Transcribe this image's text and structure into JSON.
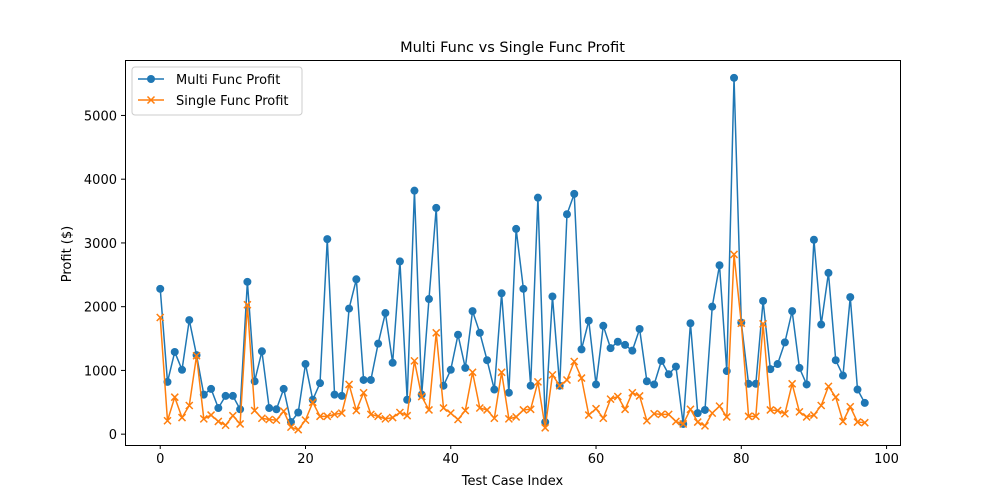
{
  "chart_data": {
    "type": "line",
    "title": "Multi Func vs Single Func Profit",
    "xlabel": "Test Case Index",
    "ylabel": "Profit ($)",
    "xlim": [
      -4.85,
      101.85
    ],
    "ylim": [
      -170,
      5870
    ],
    "xticks": [
      0,
      20,
      40,
      60,
      80,
      100
    ],
    "yticks": [
      0,
      1000,
      2000,
      3000,
      4000,
      5000
    ],
    "grid": false,
    "legend_position": "top-left",
    "series": [
      {
        "name": "Multi Func Profit",
        "color": "#1f77b4",
        "marker": "circle",
        "values": [
          2280,
          820,
          1290,
          1010,
          1790,
          1240,
          620,
          710,
          410,
          600,
          600,
          390,
          2390,
          830,
          1300,
          410,
          390,
          710,
          190,
          340,
          1100,
          540,
          800,
          3060,
          620,
          600,
          1970,
          2430,
          850,
          850,
          1420,
          1900,
          1120,
          2710,
          540,
          3820,
          620,
          2120,
          3550,
          760,
          1010,
          1560,
          1040,
          1930,
          1590,
          1160,
          700,
          2210,
          650,
          3220,
          2280,
          760,
          3710,
          190,
          2160,
          760,
          3450,
          3770,
          1330,
          1780,
          780,
          1700,
          1350,
          1450,
          1400,
          1310,
          1650,
          830,
          780,
          1150,
          940,
          1060,
          160,
          1740,
          330,
          380,
          2000,
          2650,
          990,
          5590,
          1750,
          790,
          790,
          2090,
          1020,
          1100,
          1440,
          1930,
          1040,
          780,
          3050,
          1720,
          2530,
          1160,
          920,
          2150,
          700,
          490
        ]
      },
      {
        "name": "Single Func Profit",
        "color": "#ff7f0e",
        "marker": "x",
        "values": [
          1830,
          210,
          580,
          260,
          450,
          1230,
          240,
          300,
          200,
          140,
          290,
          160,
          2030,
          370,
          250,
          230,
          220,
          360,
          110,
          70,
          220,
          500,
          280,
          280,
          310,
          330,
          780,
          370,
          650,
          310,
          280,
          240,
          260,
          340,
          290,
          1150,
          590,
          380,
          1590,
          410,
          330,
          230,
          370,
          970,
          410,
          380,
          250,
          970,
          240,
          270,
          380,
          390,
          820,
          100,
          930,
          760,
          850,
          1140,
          880,
          300,
          400,
          250,
          550,
          590,
          390,
          650,
          600,
          210,
          320,
          310,
          310,
          200,
          160,
          390,
          190,
          130,
          330,
          440,
          270,
          2820,
          1740,
          280,
          280,
          1730,
          380,
          370,
          320,
          790,
          350,
          270,
          300,
          450,
          750,
          580,
          200,
          430,
          190,
          180
        ]
      }
    ]
  }
}
